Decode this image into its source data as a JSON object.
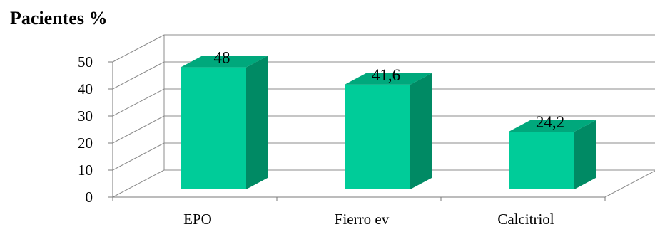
{
  "chart_data": {
    "type": "bar",
    "title": "",
    "ylabel": "Pacientes  %",
    "xlabel": "",
    "categories": [
      "EPO",
      "Fierro ev",
      "Calcitriol"
    ],
    "values": [
      48,
      41.6,
      24.2
    ],
    "data_labels": [
      "48",
      "41,6",
      "24,2"
    ],
    "ylim": [
      0,
      50
    ],
    "yticks": [
      "0",
      "10",
      "20",
      "30",
      "40",
      "50"
    ],
    "grid": true,
    "style": "3d-column",
    "colors": {
      "front": "#00cc99",
      "side": "#008a64",
      "top": "#00a87c"
    }
  }
}
